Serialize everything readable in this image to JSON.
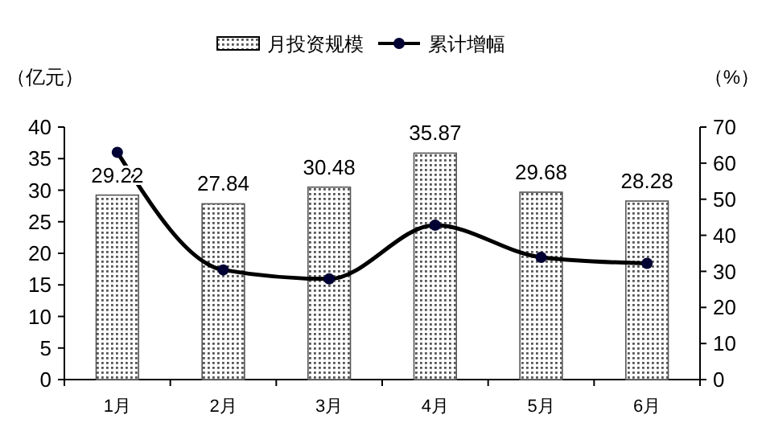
{
  "chart_data": {
    "type": "bar",
    "categories": [
      "1月",
      "2月",
      "3月",
      "4月",
      "5月",
      "6月"
    ],
    "ylabel": "（亿元）",
    "y2label": "（%）",
    "series": [
      {
        "name": "月投资规模",
        "color": "#555555",
        "values": [
          29.22,
          27.84,
          30.48,
          35.87,
          29.68,
          28.28
        ],
        "value_labels": [
          "29.22",
          "27.84",
          "30.48",
          "35.87",
          "29.68",
          "28.28"
        ]
      },
      {
        "name": "累计增幅",
        "type": "line",
        "axis": "y2",
        "color": "#000000",
        "values": [
          63.0,
          30.4,
          27.9,
          42.8,
          33.9,
          32.2
        ]
      }
    ],
    "ylim": [
      0,
      40
    ],
    "yticks": [
      0,
      5,
      10,
      15,
      20,
      25,
      30,
      35,
      40
    ],
    "y2lim": [
      0,
      70
    ],
    "y2ticks": [
      0,
      10,
      20,
      30,
      40,
      50,
      60,
      70
    ],
    "grid": false,
    "legend": "top",
    "marker": "circle",
    "line_style": "solid"
  }
}
